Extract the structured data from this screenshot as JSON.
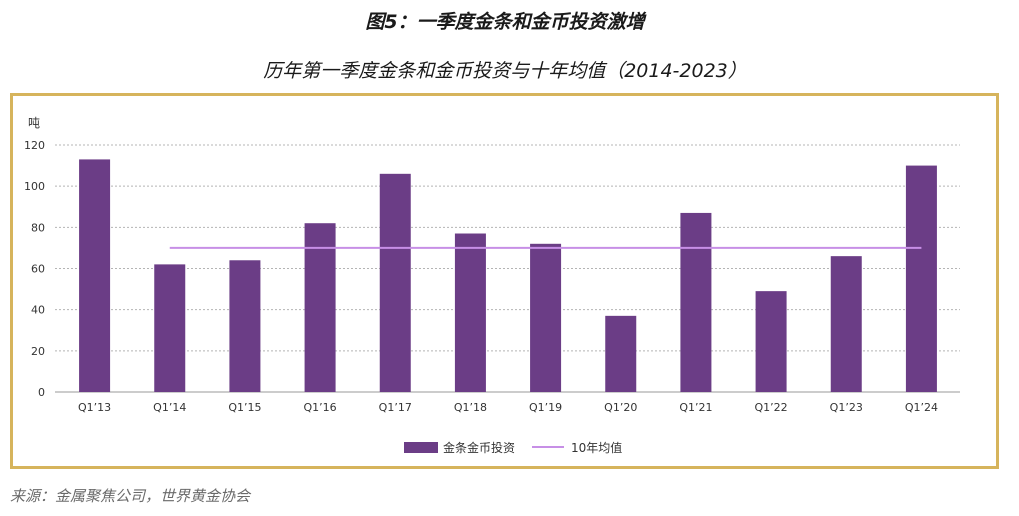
{
  "colors": {
    "bar": "#6b3d86",
    "average_line": "#c78fe6",
    "frame": "#d6b45c",
    "grid": "#b4b4b4",
    "baseline": "#9a9a9a"
  },
  "chart_data": {
    "type": "bar",
    "title": "图5：一季度金条和金币投资激增",
    "subtitle": "历年第一季度金条和金币投资与十年均值（2014-2023）",
    "source": "来源：金属聚焦公司，世界黄金协会",
    "xlabel": "",
    "ylabel": "吨",
    "categories": [
      "Q1’13",
      "Q1’14",
      "Q1’15",
      "Q1’16",
      "Q1’17",
      "Q1’18",
      "Q1’19",
      "Q1’20",
      "Q1’21",
      "Q1’22",
      "Q1’23",
      "Q1’24"
    ],
    "ylim": [
      0,
      120
    ],
    "yticks": [
      0,
      20,
      40,
      60,
      80,
      100,
      120
    ],
    "grid": true,
    "legend_position": "bottom-center",
    "series": [
      {
        "name": "金条金币投资",
        "type": "bar",
        "values": [
          113,
          62,
          64,
          82,
          106,
          77,
          72,
          37,
          87,
          49,
          66,
          110
        ]
      },
      {
        "name": "10年均值",
        "type": "line",
        "values": [
          null,
          70,
          70,
          70,
          70,
          70,
          70,
          70,
          70,
          70,
          70,
          70
        ]
      }
    ]
  }
}
